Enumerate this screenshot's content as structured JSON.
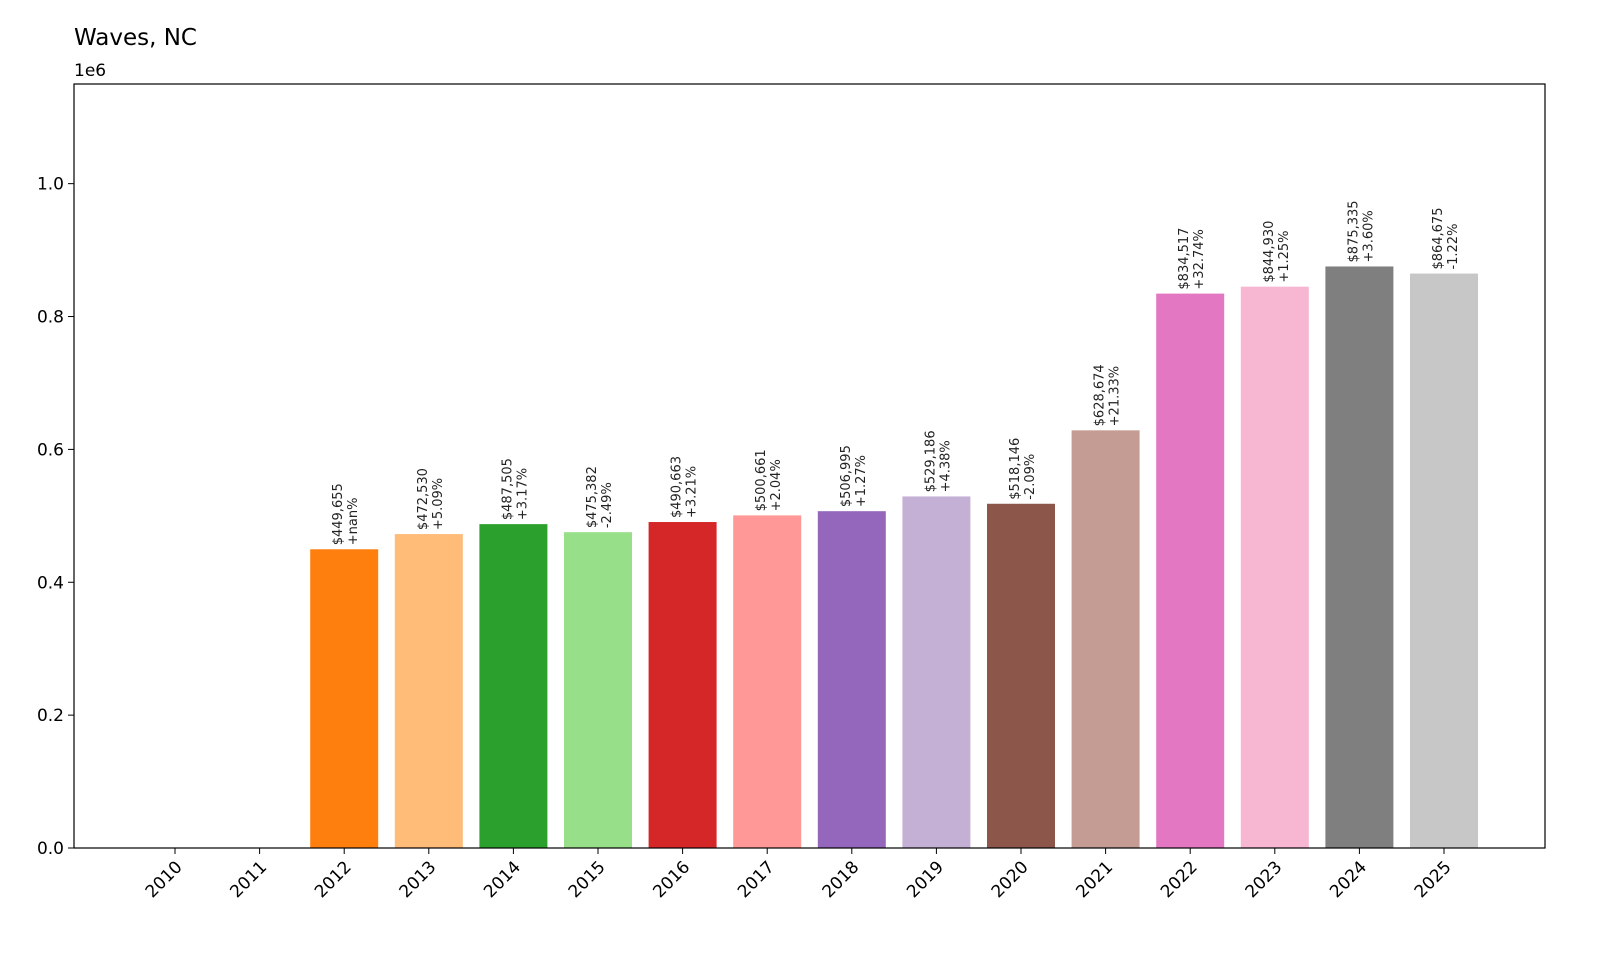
{
  "chart_data": {
    "type": "bar",
    "title": "Waves, NC",
    "y_offset_label": "1e6",
    "categories": [
      "2010",
      "2011",
      "2012",
      "2013",
      "2014",
      "2015",
      "2016",
      "2017",
      "2018",
      "2019",
      "2020",
      "2021",
      "2022",
      "2023",
      "2024",
      "2025"
    ],
    "values": [
      0,
      0,
      449655,
      472530,
      487505,
      475382,
      490663,
      500661,
      506995,
      529186,
      518146,
      628674,
      834517,
      844930,
      875335,
      864675
    ],
    "value_labels": [
      null,
      null,
      "$449,655",
      "$472,530",
      "$487,505",
      "$475,382",
      "$490,663",
      "$500,661",
      "$506,995",
      "$529,186",
      "$518,146",
      "$628,674",
      "$834,517",
      "$844,930",
      "$875,335",
      "$864,675"
    ],
    "change_labels": [
      null,
      null,
      "+nan%",
      "+5.09%",
      "+3.17%",
      "-2.49%",
      "+3.21%",
      "+2.04%",
      "+1.27%",
      "+4.38%",
      "-2.09%",
      "+21.33%",
      "+32.74%",
      "+1.25%",
      "+3.60%",
      "-1.22%"
    ],
    "colors": [
      "#1f77b4",
      "#aec7e8",
      "#ff7f0e",
      "#ffbb78",
      "#2ca02c",
      "#98df8a",
      "#d62728",
      "#ff9896",
      "#9467bd",
      "#c5b0d5",
      "#8c564b",
      "#c49c94",
      "#e377c2",
      "#f7b6d2",
      "#7f7f7f",
      "#c7c7c7"
    ],
    "ylim": [
      0,
      1150000
    ],
    "yticks": [
      {
        "value": 0,
        "label": "0.0"
      },
      {
        "value": 200000,
        "label": "0.2"
      },
      {
        "value": 400000,
        "label": "0.4"
      },
      {
        "value": 600000,
        "label": "0.6"
      },
      {
        "value": 800000,
        "label": "0.8"
      },
      {
        "value": 1000000,
        "label": "1.0"
      }
    ]
  }
}
